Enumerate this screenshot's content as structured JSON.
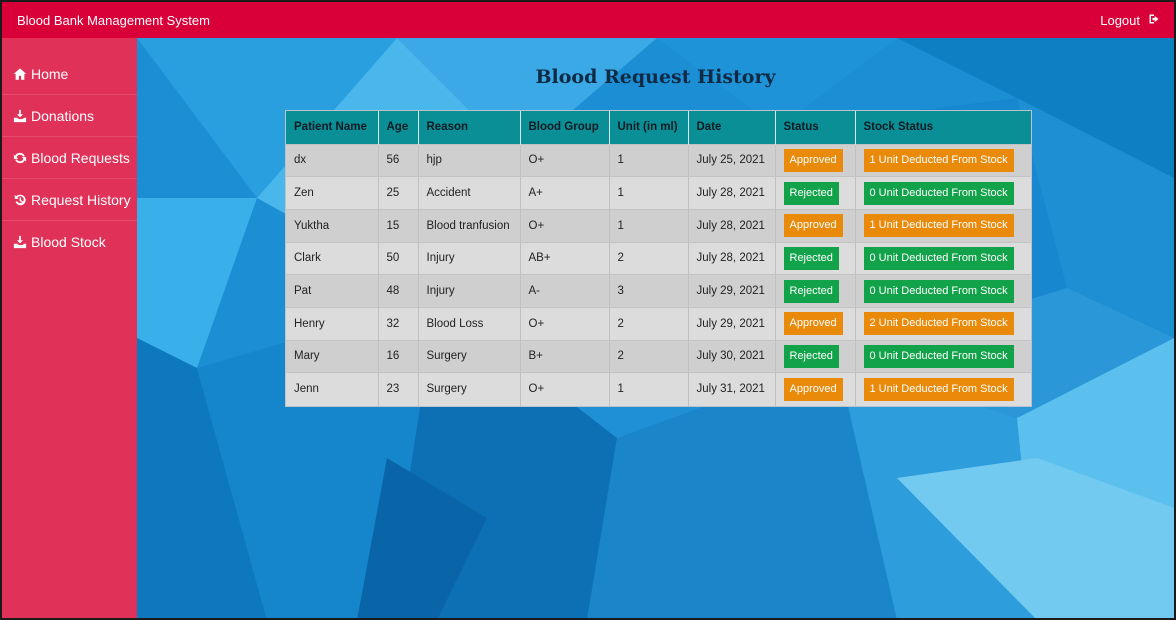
{
  "app": {
    "title": "Blood Bank Management System",
    "logout_label": "Logout"
  },
  "sidebar": {
    "items": [
      {
        "label": "Home",
        "icon": "home-icon"
      },
      {
        "label": "Donations",
        "icon": "donation-icon"
      },
      {
        "label": "Blood Requests",
        "icon": "refresh-icon"
      },
      {
        "label": "Request History",
        "icon": "history-icon"
      },
      {
        "label": "Blood Stock",
        "icon": "donation-icon"
      }
    ]
  },
  "main": {
    "heading": "Blood Request History",
    "table": {
      "columns": [
        "Patient Name",
        "Age",
        "Reason",
        "Blood Group",
        "Unit (in ml)",
        "Date",
        "Status",
        "Stock Status"
      ],
      "rows": [
        {
          "name": "dx",
          "age": "56",
          "reason": "hjp",
          "group": "O+",
          "unit": "1",
          "date": "July 25, 2021",
          "status": "Approved",
          "stock": "1 Unit Deducted From Stock"
        },
        {
          "name": "Zen",
          "age": "25",
          "reason": "Accident",
          "group": "A+",
          "unit": "1",
          "date": "July 28, 2021",
          "status": "Rejected",
          "stock": "0 Unit Deducted From Stock"
        },
        {
          "name": "Yuktha",
          "age": "15",
          "reason": "Blood tranfusion",
          "group": "O+",
          "unit": "1",
          "date": "July 28, 2021",
          "status": "Approved",
          "stock": "1 Unit Deducted From Stock"
        },
        {
          "name": "Clark",
          "age": "50",
          "reason": "Injury",
          "group": "AB+",
          "unit": "2",
          "date": "July 28, 2021",
          "status": "Rejected",
          "stock": "0 Unit Deducted From Stock"
        },
        {
          "name": "Pat",
          "age": "48",
          "reason": "Injury",
          "group": "A-",
          "unit": "3",
          "date": "July 29, 2021",
          "status": "Rejected",
          "stock": "0 Unit Deducted From Stock"
        },
        {
          "name": "Henry",
          "age": "32",
          "reason": "Blood Loss",
          "group": "O+",
          "unit": "2",
          "date": "July 29, 2021",
          "status": "Approved",
          "stock": "2 Unit Deducted From Stock"
        },
        {
          "name": "Mary",
          "age": "16",
          "reason": "Surgery",
          "group": "B+",
          "unit": "2",
          "date": "July 30, 2021",
          "status": "Rejected",
          "stock": "0 Unit Deducted From Stock"
        },
        {
          "name": "Jenn",
          "age": "23",
          "reason": "Surgery",
          "group": "O+",
          "unit": "1",
          "date": "July 31, 2021",
          "status": "Approved",
          "stock": "1 Unit Deducted From Stock"
        }
      ]
    }
  },
  "colors": {
    "topbar": "#d9003a",
    "sidebar": "#e03158",
    "table_header": "#0b8f96",
    "approved": "#e98a0b",
    "rejected": "#12a34a"
  }
}
